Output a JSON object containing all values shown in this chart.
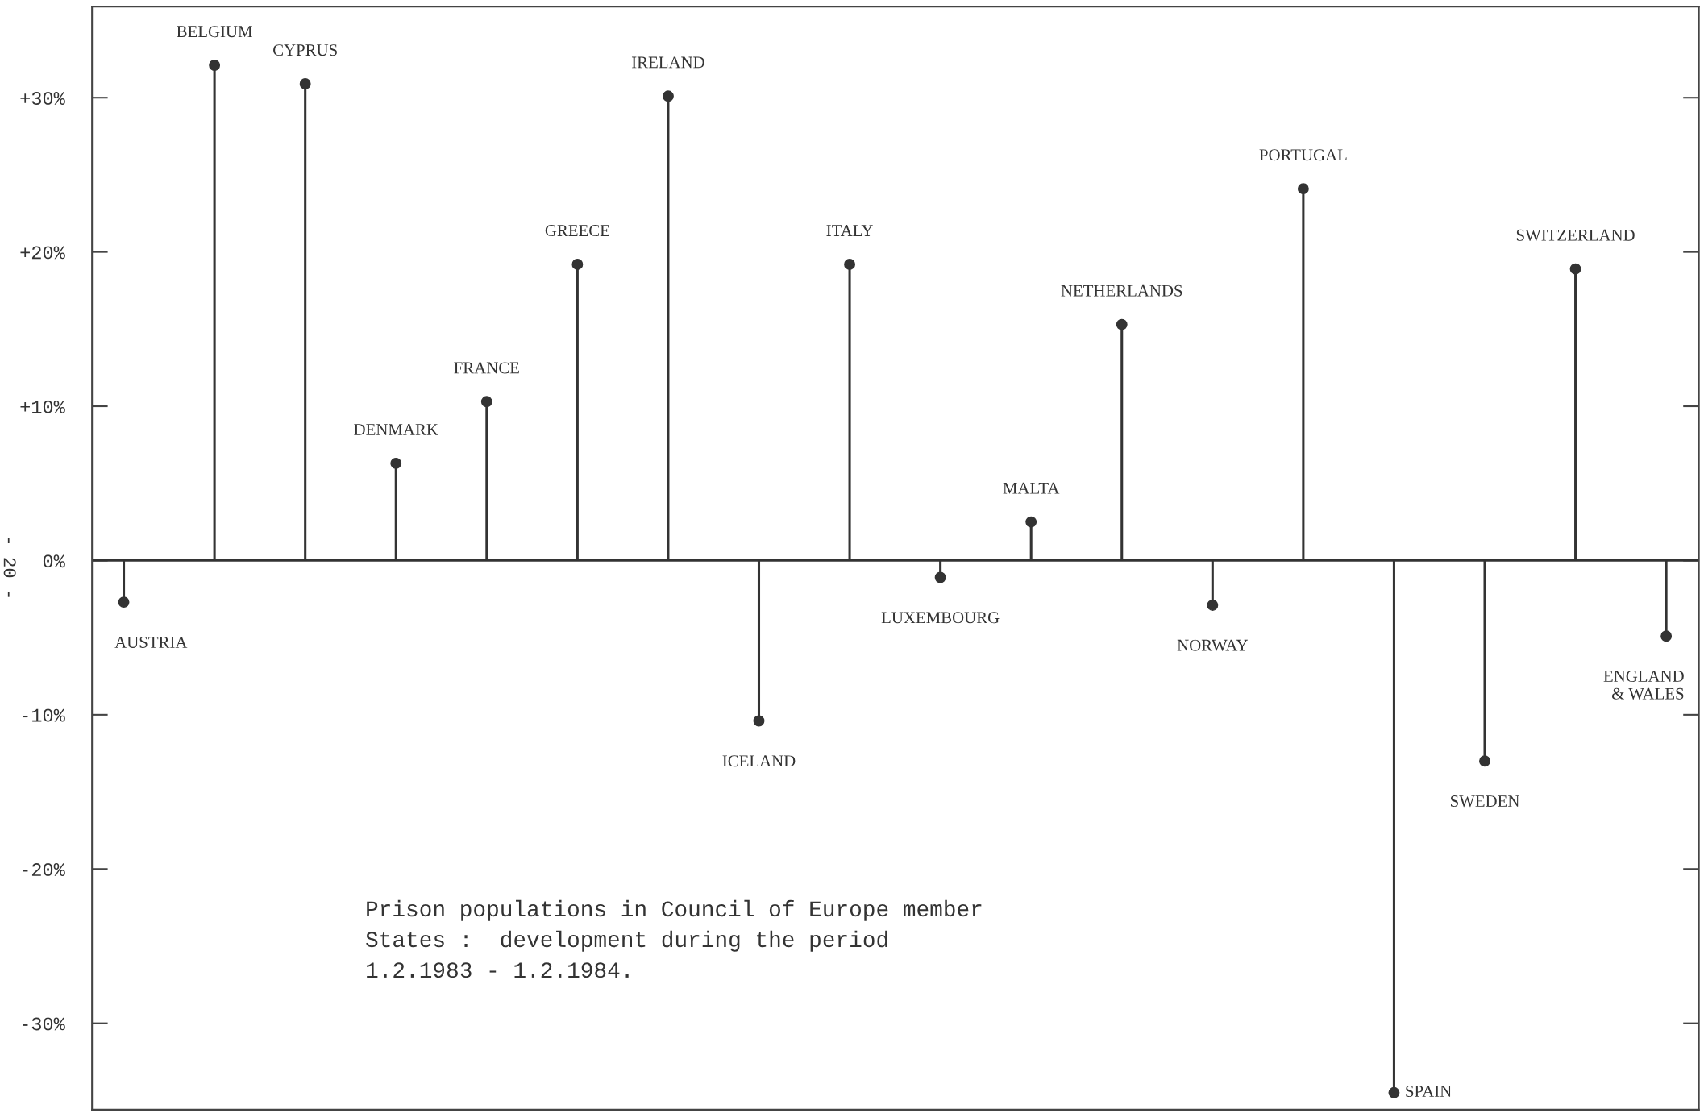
{
  "chart_data": {
    "type": "lollipop",
    "categories": [
      "AUSTRIA",
      "BELGIUM",
      "CYPRUS",
      "DENMARK",
      "FRANCE",
      "GREECE",
      "IRELAND",
      "ICELAND",
      "ITALY",
      "LUXEMBOURG",
      "MALTA",
      "NETHERLANDS",
      "NORWAY",
      "PORTUGAL",
      "SPAIN",
      "SWEDEN",
      "SWITZERLAND",
      "ENGLAND\n& WALES"
    ],
    "values": [
      -2.7,
      32.1,
      30.9,
      6.3,
      10.3,
      19.2,
      30.1,
      -10.4,
      19.2,
      -1.1,
      2.5,
      15.3,
      -2.9,
      24.1,
      -34.5,
      -13.0,
      18.9,
      -4.9
    ],
    "color": "#333333",
    "marker": "circle",
    "ylim": [
      -35.6,
      35.9
    ],
    "yticks": [
      {
        "value": 30,
        "label": "+30%"
      },
      {
        "value": 20,
        "label": "+20%"
      },
      {
        "value": 10,
        "label": "+10%"
      },
      {
        "value": 0,
        "label": "0%"
      },
      {
        "value": -10,
        "label": "-10%"
      },
      {
        "value": -20,
        "label": "-20%"
      },
      {
        "value": -30,
        "label": "-30%"
      }
    ],
    "grid": false,
    "ref_lines": [
      {
        "axis": "y",
        "value": 0,
        "color": "#333333"
      }
    ],
    "annotations": [
      "Prison populations in Council of Europe member\nStates :  development during the period\n1.2.1983 - 1.2.1984.",
      "- 20 -"
    ]
  }
}
